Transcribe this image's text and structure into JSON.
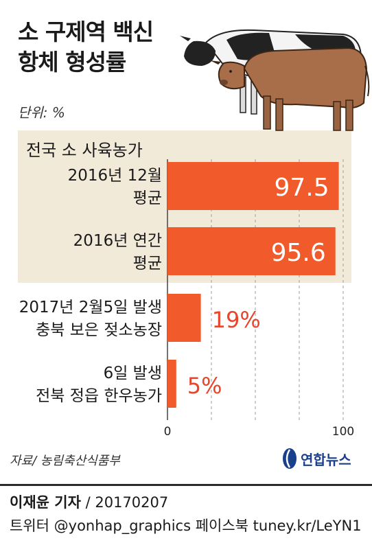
{
  "title_line1": "소 구제역 백신",
  "title_line2": "항체 형성률",
  "unit": "단위: %",
  "group_label": "전국 소 사육농가",
  "source": "자료/ 농림축산식품부",
  "logo_text": "연합뉴스",
  "reporter": "이재윤 기자",
  "date": "/ 20170207",
  "social": "트위터 @yonhap_graphics  페이스북 tuney.kr/LeYN1",
  "colors": {
    "bar": "#f15a2b",
    "highlight_bg": "#f2ead9",
    "grid": "#aaaaaa",
    "outside_label": "#e8452a"
  },
  "chart_data": {
    "type": "bar",
    "orientation": "horizontal",
    "categories": [
      [
        "2016년 12월",
        "평균"
      ],
      [
        "2016년 연간",
        "평균"
      ],
      [
        "2017년 2월5일 발생",
        "충북 보은 젖소농장"
      ],
      [
        "6일 발생",
        "전북 정읍 한우농가"
      ]
    ],
    "values": [
      97.5,
      95.6,
      19,
      5
    ],
    "value_labels": [
      "97.5",
      "95.6",
      "19%",
      "5%"
    ],
    "xlim": [
      0,
      100
    ],
    "xticks": [
      "0",
      "100"
    ],
    "grid": true,
    "highlighted_categories": [
      0,
      1
    ]
  }
}
